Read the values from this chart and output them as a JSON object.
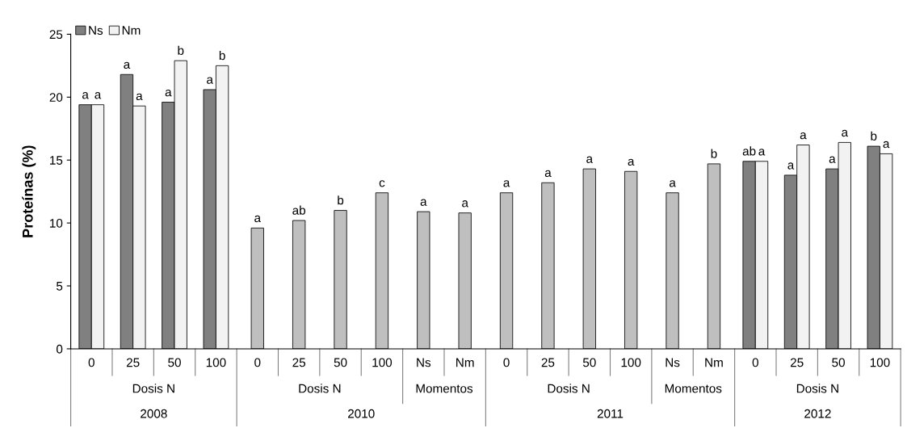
{
  "chart_data": {
    "type": "bar",
    "ylabel": "Proteínas (%)",
    "categories": [
      "0",
      "25",
      "50",
      "100",
      "0",
      "25",
      "50",
      "100",
      "Ns",
      "Nm",
      "0",
      "25",
      "50",
      "100",
      "Ns",
      "Nm",
      "0",
      "25",
      "50",
      "100"
    ],
    "series": [
      {
        "name": "Ns",
        "color": "#808080",
        "values": [
          19.4,
          21.8,
          19.6,
          20.6,
          null,
          null,
          null,
          null,
          null,
          null,
          null,
          null,
          null,
          null,
          null,
          null,
          14.9,
          13.8,
          14.3,
          16.1
        ],
        "value_labels": [
          "a",
          "a",
          "a",
          "a",
          null,
          null,
          null,
          null,
          null,
          null,
          null,
          null,
          null,
          null,
          null,
          null,
          "ab",
          "a",
          "a",
          "b"
        ]
      },
      {
        "name": "Nm",
        "color": "#f2f2f2",
        "values": [
          19.4,
          19.3,
          22.9,
          22.5,
          null,
          null,
          null,
          null,
          null,
          null,
          null,
          null,
          null,
          null,
          null,
          null,
          14.9,
          16.2,
          16.4,
          15.5
        ],
        "value_labels": [
          "a",
          "a",
          "b",
          "b",
          null,
          null,
          null,
          null,
          null,
          null,
          null,
          null,
          null,
          null,
          null,
          null,
          "a",
          "a",
          "a",
          "a"
        ]
      },
      {
        "color": "#bfbfbf",
        "values": [
          null,
          null,
          null,
          null,
          9.6,
          10.2,
          11.0,
          12.4,
          10.9,
          10.8,
          12.4,
          13.2,
          14.3,
          14.1,
          12.4,
          14.7,
          null,
          null,
          null,
          null
        ],
        "value_labels": [
          null,
          null,
          null,
          null,
          "a",
          "ab",
          "b",
          "c",
          "a",
          "a",
          "a",
          "a",
          "a",
          "a",
          "a",
          "b",
          null,
          null,
          null,
          null
        ]
      }
    ],
    "annotations": [
      "Dosis N",
      "Dosis N",
      "Momentos",
      "Dosis N",
      "Momentos",
      "Dosis N",
      "2008",
      "2010",
      "2011",
      "2012"
    ],
    "ylim": [
      0,
      25
    ],
    "yticks": [
      0,
      5,
      10,
      15,
      20,
      25
    ],
    "grid": false,
    "legend": "top left"
  }
}
